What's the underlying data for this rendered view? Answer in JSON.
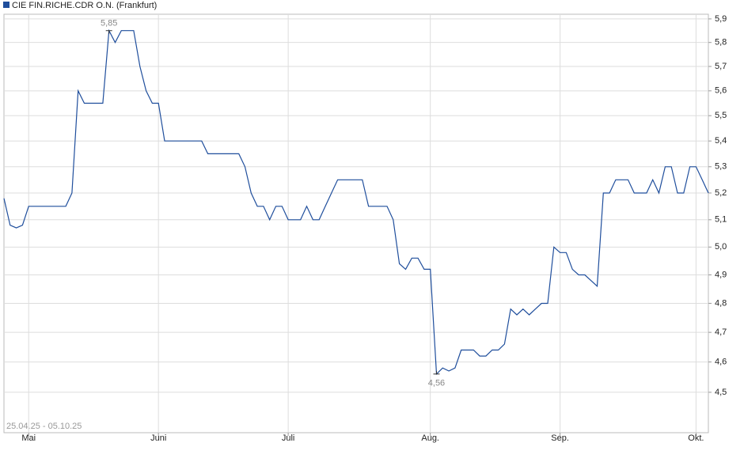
{
  "chart_data": {
    "type": "line",
    "date_range": "25.04.25 - 05.10.25",
    "log": true,
    "grid": true,
    "legend": "top-left",
    "categories": [
      null,
      null,
      null,
      null,
      "Mai",
      null,
      null,
      null,
      null,
      null,
      null,
      null,
      null,
      null,
      null,
      null,
      null,
      null,
      null,
      null,
      null,
      null,
      null,
      null,
      null,
      "Juni",
      null,
      null,
      null,
      null,
      null,
      null,
      null,
      null,
      null,
      null,
      null,
      null,
      null,
      null,
      null,
      null,
      null,
      null,
      null,
      null,
      "Juli",
      null,
      null,
      null,
      null,
      null,
      null,
      null,
      null,
      null,
      null,
      null,
      null,
      null,
      null,
      null,
      null,
      null,
      null,
      null,
      null,
      null,
      null,
      "Aug.",
      null,
      null,
      null,
      null,
      null,
      null,
      null,
      null,
      null,
      null,
      null,
      null,
      null,
      null,
      null,
      null,
      null,
      null,
      null,
      null,
      "Sep.",
      null,
      null,
      null,
      null,
      null,
      null,
      null,
      null,
      null,
      null,
      null,
      null,
      null,
      null,
      null,
      null,
      null,
      null,
      null,
      null,
      null,
      "Okt.",
      null,
      null
    ],
    "series": [
      {
        "name": "CIE FIN.RICHE.CDR O.N. (Frankfurt)",
        "color": "#1f4e9c",
        "values": [
          5.18,
          5.08,
          5.07,
          5.08,
          5.15,
          5.15,
          5.15,
          5.15,
          5.15,
          5.15,
          5.15,
          5.2,
          5.6,
          5.55,
          5.55,
          5.55,
          5.55,
          5.85,
          5.8,
          5.85,
          5.85,
          5.85,
          5.7,
          5.6,
          5.55,
          5.55,
          5.4,
          5.4,
          5.4,
          5.4,
          5.4,
          5.4,
          5.4,
          5.35,
          5.35,
          5.35,
          5.35,
          5.35,
          5.35,
          5.3,
          5.2,
          5.15,
          5.15,
          5.1,
          5.15,
          5.15,
          5.1,
          5.1,
          5.1,
          5.15,
          5.1,
          5.1,
          5.15,
          5.2,
          5.25,
          5.25,
          5.25,
          5.25,
          5.25,
          5.15,
          5.15,
          5.15,
          5.15,
          5.1,
          4.94,
          4.92,
          4.96,
          4.96,
          4.92,
          4.92,
          4.56,
          4.58,
          4.57,
          4.58,
          4.64,
          4.64,
          4.64,
          4.62,
          4.62,
          4.64,
          4.64,
          4.66,
          4.78,
          4.76,
          4.78,
          4.76,
          4.78,
          4.8,
          4.8,
          5.0,
          4.98,
          4.98,
          4.92,
          4.9,
          4.9,
          4.88,
          4.86,
          5.2,
          5.2,
          5.25,
          5.25,
          5.25,
          5.2,
          5.2,
          5.2,
          5.25,
          5.2,
          5.3,
          5.3,
          5.2,
          5.2,
          5.3,
          5.3,
          5.25,
          5.2
        ],
        "value_labels": [
          null,
          null,
          null,
          null,
          null,
          null,
          null,
          null,
          null,
          null,
          null,
          null,
          null,
          null,
          null,
          null,
          null,
          "5,85",
          null,
          null,
          null,
          null,
          null,
          null,
          null,
          null,
          null,
          null,
          null,
          null,
          null,
          null,
          null,
          null,
          null,
          null,
          null,
          null,
          null,
          null,
          null,
          null,
          null,
          null,
          null,
          null,
          null,
          null,
          null,
          null,
          null,
          null,
          null,
          null,
          null,
          null,
          null,
          null,
          null,
          null,
          null,
          null,
          null,
          null,
          null,
          null,
          null,
          null,
          null,
          null,
          "4,56",
          null,
          null,
          null,
          null,
          null,
          null,
          null,
          null,
          null,
          null,
          null,
          null,
          null,
          null,
          null,
          null,
          null,
          null,
          null,
          null,
          null,
          null,
          null,
          null,
          null,
          null,
          null,
          null,
          null,
          null,
          null,
          null,
          null,
          null,
          null,
          null,
          null,
          null,
          null,
          null,
          null,
          null,
          null,
          null
        ]
      }
    ],
    "ylim": [
      4.37,
      5.92
    ],
    "yticks": [
      {
        "value": 4.5,
        "label": "4,5"
      },
      {
        "value": 4.6,
        "label": "4,6"
      },
      {
        "value": 4.7,
        "label": "4,7"
      },
      {
        "value": 4.8,
        "label": "4,8"
      },
      {
        "value": 4.9,
        "label": "4,9"
      },
      {
        "value": 5.0,
        "label": "5,0"
      },
      {
        "value": 5.1,
        "label": "5,1"
      },
      {
        "value": 5.2,
        "label": "5,2"
      },
      {
        "value": 5.3,
        "label": "5,3"
      },
      {
        "value": 5.4,
        "label": "5,4"
      },
      {
        "value": 5.5,
        "label": "5,5"
      },
      {
        "value": 5.6,
        "label": "5,6"
      },
      {
        "value": 5.7,
        "label": "5,7"
      },
      {
        "value": 5.8,
        "label": "5,8"
      },
      {
        "value": 5.9,
        "label": "5,9"
      }
    ]
  }
}
